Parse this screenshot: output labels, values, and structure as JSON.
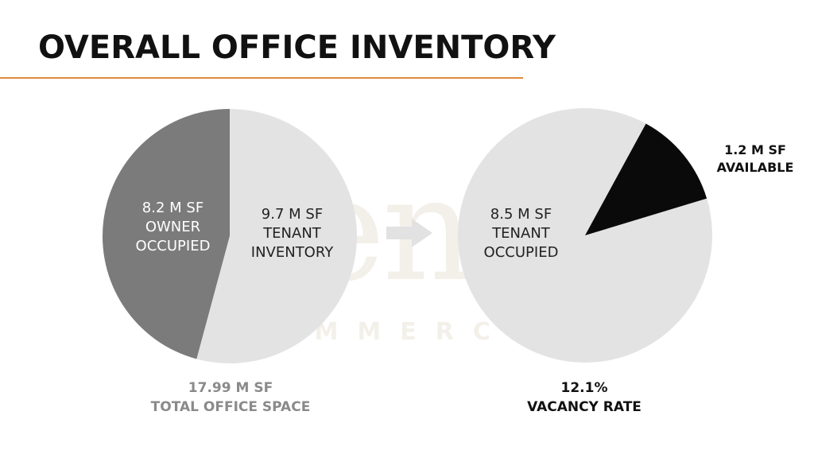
{
  "title": "OVERALL OFFICE INVENTORY",
  "colors": {
    "accent": "#e08a3c",
    "owner_slice": "#7b7b7b",
    "tenant_slice": "#e3e3e3",
    "available_slice": "#0a0a0a",
    "caption_gray": "#8a8a8a",
    "arrow": "#e2e2e2"
  },
  "watermark": {
    "main": "Bender",
    "sub": "COMMERCIAL"
  },
  "chart_data": [
    {
      "type": "pie",
      "series": [
        {
          "label": "8.2 M SF\nOWNER\nOCCUPIED",
          "value": 8.2
        },
        {
          "label": "9.7 M SF\nTENANT\nINVENTORY",
          "value": 9.7
        }
      ],
      "caption": "17.99 M SF\nTOTAL OFFICE SPACE"
    },
    {
      "type": "pie",
      "series": [
        {
          "label": "8.5 M SF\nTENANT\nOCCUPIED",
          "value": 8.5
        },
        {
          "label": "1.2 M SF\nAVAILABLE",
          "value": 1.2
        }
      ],
      "caption": "12.1%\nVACANCY RATE"
    }
  ],
  "arrow_icon": "right-arrow-icon"
}
